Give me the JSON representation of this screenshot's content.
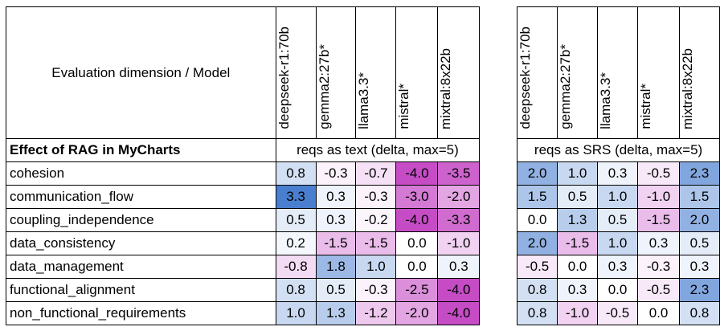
{
  "corner_label": "Evaluation dimension / Model",
  "models_left": [
    "deepseek-r1:70b",
    "gemma2:27b*",
    "llama3.3*",
    "mistral*",
    "mixtral:8x22b"
  ],
  "models_right": [
    "deepseek-r1:70b",
    "gemma2:27b*",
    "llama3.3*",
    "mistral*",
    "mixtral:8x22b"
  ],
  "section_label": "Effect of RAG in MyCharts",
  "group_left_label": "reqs as text (delta, max=5)",
  "group_right_label": "reqs as SRS (delta, max=5)",
  "colors": {
    "positive": "#4a7fcf",
    "negative": "#c64cc6",
    "neutral": "#ffffff"
  },
  "rows": [
    {
      "label": "cohesion",
      "left": [
        "0.8",
        "-0.3",
        "-0.7",
        "-4.0",
        "-3.5"
      ],
      "right": [
        "2.0",
        "1.0",
        "0.3",
        "-0.5",
        "2.3"
      ]
    },
    {
      "label": "communication_flow",
      "left": [
        "3.3",
        "0.3",
        "-0.3",
        "-3.0",
        "-2.0"
      ],
      "right": [
        "1.5",
        "0.5",
        "1.0",
        "-1.0",
        "1.5"
      ]
    },
    {
      "label": "coupling_independence",
      "left": [
        "0.5",
        "0.3",
        "-0.2",
        "-4.0",
        "-3.3"
      ],
      "right": [
        "0.0",
        "1.3",
        "0.5",
        "-1.5",
        "2.0"
      ]
    },
    {
      "label": "data_consistency",
      "left": [
        "0.2",
        "-1.5",
        "-1.5",
        "0.0",
        "-1.0"
      ],
      "right": [
        "2.0",
        "-1.5",
        "1.0",
        "0.3",
        "0.5"
      ]
    },
    {
      "label": "data_management",
      "left": [
        "-0.8",
        "1.8",
        "1.0",
        "0.0",
        "0.3"
      ],
      "right": [
        "-0.5",
        "0.0",
        "0.3",
        "-0.3",
        "0.3"
      ]
    },
    {
      "label": "functional_alignment",
      "left": [
        "0.8",
        "0.5",
        "-0.3",
        "-2.5",
        "-4.0"
      ],
      "right": [
        "0.8",
        "0.3",
        "0.0",
        "-0.5",
        "2.3"
      ]
    },
    {
      "label": "non_functional_requirements",
      "left": [
        "1.0",
        "1.3",
        "-1.2",
        "-2.0",
        "-4.0"
      ],
      "right": [
        "0.8",
        "-1.0",
        "-0.5",
        "0.0",
        "0.8"
      ]
    }
  ]
}
